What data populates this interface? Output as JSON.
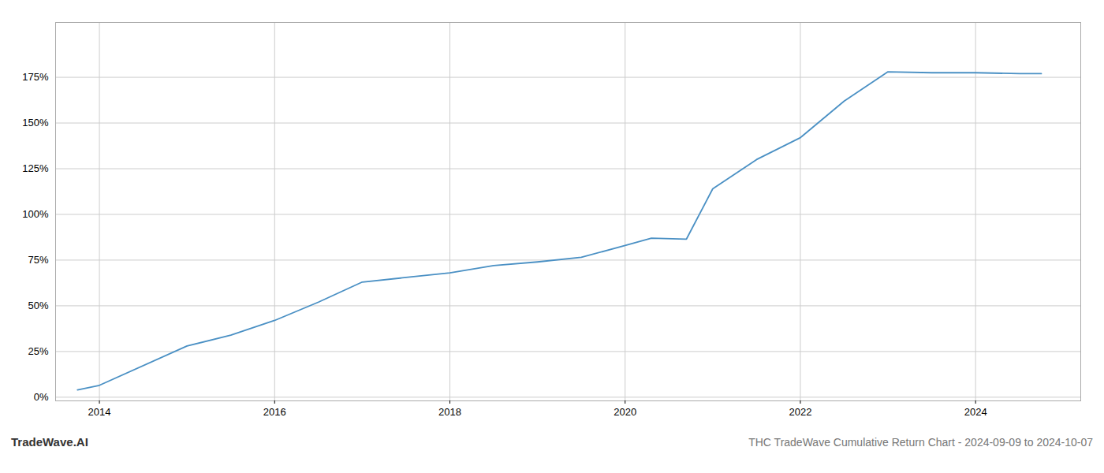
{
  "chart_data": {
    "type": "line",
    "title": "THC TradeWave Cumulative Return Chart - 2024-09-09 to 2024-10-07",
    "annotations": [
      "TradeWave.AI"
    ],
    "x": [
      2013.75,
      2014.0,
      2015.0,
      2015.5,
      2016.0,
      2016.5,
      2017.0,
      2017.5,
      2018.0,
      2018.5,
      2019.0,
      2019.5,
      2020.0,
      2020.3,
      2020.7,
      2021.0,
      2021.5,
      2022.0,
      2022.5,
      2023.0,
      2023.5,
      2024.0,
      2024.5,
      2024.75
    ],
    "values": [
      0.04,
      0.065,
      0.28,
      0.34,
      0.42,
      0.52,
      0.63,
      0.655,
      0.68,
      0.72,
      0.74,
      0.765,
      0.83,
      0.87,
      0.865,
      1.14,
      1.3,
      1.42,
      1.62,
      1.78,
      1.775,
      1.775,
      1.77,
      1.77
    ],
    "color": "#4a90c4",
    "xlim": [
      2013.5,
      2025.2
    ],
    "xticks": [
      2014,
      2016,
      2018,
      2020,
      2022,
      2024
    ],
    "ylim": [
      -0.02,
      2.05
    ],
    "yticks": [
      {
        "value": 0.0,
        "label": "0%"
      },
      {
        "value": 0.25,
        "label": "25%"
      },
      {
        "value": 0.5,
        "label": "50%"
      },
      {
        "value": 0.75,
        "label": "75%"
      },
      {
        "value": 1.0,
        "label": "100%"
      },
      {
        "value": 1.25,
        "label": "125%"
      },
      {
        "value": 1.5,
        "label": "150%"
      },
      {
        "value": 1.75,
        "label": "175%"
      }
    ],
    "grid": true
  }
}
